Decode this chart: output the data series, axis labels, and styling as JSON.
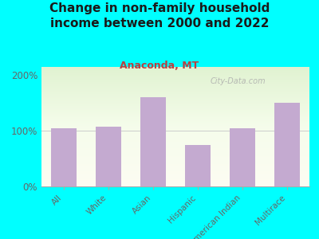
{
  "title": "Change in non-family household\nincome between 2000 and 2022",
  "subtitle": "Anaconda, MT",
  "categories": [
    "All",
    "White",
    "Asian",
    "Hispanic",
    "American Indian",
    "Multirace"
  ],
  "values": [
    105,
    108,
    160,
    75,
    105,
    150
  ],
  "bar_color": "#c4aad0",
  "background_color": "#00ffff",
  "title_color": "#1a1a1a",
  "subtitle_color": "#b84040",
  "tick_color": "#666666",
  "yticks": [
    0,
    100,
    200
  ],
  "ytick_labels": [
    "0%",
    "100%",
    "200%"
  ],
  "ylim": [
    0,
    215
  ],
  "watermark": "City-Data.com",
  "title_fontsize": 11,
  "subtitle_fontsize": 9,
  "tick_fontsize": 8.5,
  "xtick_fontsize": 7.5
}
